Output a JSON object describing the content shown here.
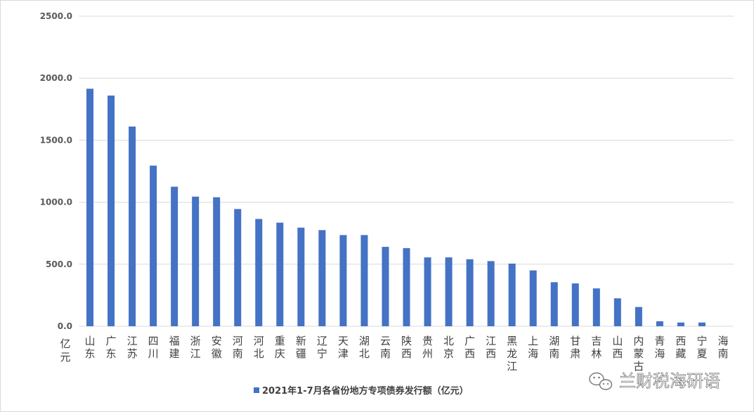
{
  "chart_data": {
    "type": "bar",
    "categories": [
      "山东",
      "广东",
      "江苏",
      "四川",
      "福建",
      "浙江",
      "安徽",
      "河南",
      "河北",
      "重庆",
      "新疆",
      "辽宁",
      "天津",
      "湖北",
      "云南",
      "陕西",
      "贵州",
      "北京",
      "广西",
      "江西",
      "黑龙江",
      "上海",
      "湖南",
      "甘肃",
      "吉林",
      "山西",
      "内蒙古",
      "青海",
      "西藏",
      "宁夏",
      "海南"
    ],
    "series": [
      {
        "name": "2021年1-7月各省份地方专项债券发行额（亿元）",
        "values": [
          1915,
          1860,
          1610,
          1295,
          1125,
          1045,
          1040,
          945,
          865,
          835,
          795,
          775,
          735,
          735,
          640,
          630,
          555,
          555,
          540,
          525,
          505,
          450,
          355,
          345,
          305,
          225,
          155,
          40,
          30,
          30,
          0
        ],
        "color": "#4472C4"
      }
    ],
    "ylim": [
      0,
      2500
    ],
    "yticks": [
      "0.0",
      "500.0",
      "1000.0",
      "1500.0",
      "2000.0",
      "2500.0"
    ],
    "unit_label": "亿元",
    "grid": true,
    "legend_position": "bottom"
  },
  "watermark": {
    "text": "兰财税海研语",
    "icon": "wechat-icon"
  }
}
